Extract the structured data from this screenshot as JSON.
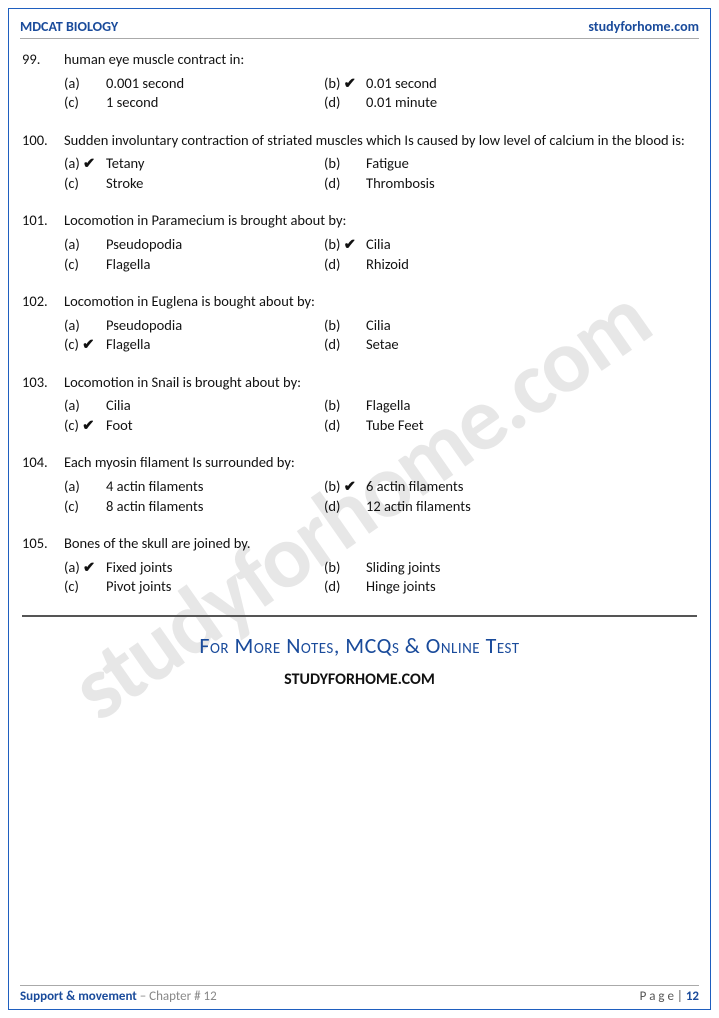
{
  "header": {
    "left": "MDCAT BIOLOGY",
    "right": "studyforhome.com"
  },
  "watermark": "studyforhome.com",
  "questions": [
    {
      "num": "99.",
      "text": "human eye muscle contract in:",
      "opts": [
        {
          "l": "(a)",
          "t": "0.001 second",
          "c": false
        },
        {
          "l": "(b)",
          "t": "0.01 second",
          "c": true
        },
        {
          "l": "(c)",
          "t": "1 second",
          "c": false
        },
        {
          "l": "(d)",
          "t": "0.01 minute",
          "c": false
        }
      ]
    },
    {
      "num": "100.",
      "text": "Sudden involuntary contraction of striated muscles which Is caused by low level of calcium in the blood is:",
      "opts": [
        {
          "l": "(a)",
          "t": "Tetany",
          "c": true
        },
        {
          "l": "(b)",
          "t": "Fatigue",
          "c": false
        },
        {
          "l": "(c)",
          "t": "Stroke",
          "c": false
        },
        {
          "l": "(d)",
          "t": "Thrombosis",
          "c": false
        }
      ]
    },
    {
      "num": "101.",
      "text": "Locomotion in Paramecium is brought about by:",
      "opts": [
        {
          "l": "(a)",
          "t": "Pseudopodia",
          "c": false
        },
        {
          "l": "(b)",
          "t": "Cilia",
          "c": true
        },
        {
          "l": "(c)",
          "t": "Flagella",
          "c": false
        },
        {
          "l": "(d)",
          "t": "Rhizoid",
          "c": false
        }
      ]
    },
    {
      "num": "102.",
      "text": "Locomotion in Euglena is bought about by:",
      "opts": [
        {
          "l": "(a)",
          "t": "Pseudopodia",
          "c": false
        },
        {
          "l": "(b)",
          "t": "Cilia",
          "c": false
        },
        {
          "l": "(c)",
          "t": "Flagella",
          "c": true
        },
        {
          "l": "(d)",
          "t": "Setae",
          "c": false
        }
      ]
    },
    {
      "num": "103.",
      "text": "Locomotion in Snail is brought about by:",
      "opts": [
        {
          "l": "(a)",
          "t": "Cilia",
          "c": false
        },
        {
          "l": "(b)",
          "t": "Flagella",
          "c": false
        },
        {
          "l": "(c)",
          "t": "Foot",
          "c": true
        },
        {
          "l": "(d)",
          "t": "Tube Feet",
          "c": false
        }
      ]
    },
    {
      "num": "104.",
      "text": "Each myosin filament Is surrounded by:",
      "opts": [
        {
          "l": "(a)",
          "t": "4 actin filaments",
          "c": false
        },
        {
          "l": "(b)",
          "t": "6 actin filaments",
          "c": true
        },
        {
          "l": "(c)",
          "t": "8 actin filaments",
          "c": false
        },
        {
          "l": "(d)",
          "t": "12 actin filaments",
          "c": false
        }
      ]
    },
    {
      "num": "105.",
      "text": "Bones of the skull are joined by.",
      "opts": [
        {
          "l": "(a)",
          "t": "Fixed joints",
          "c": true
        },
        {
          "l": "(b)",
          "t": "Sliding joints",
          "c": false
        },
        {
          "l": "(c)",
          "t": "Pivot joints",
          "c": false
        },
        {
          "l": "(d)",
          "t": "Hinge joints",
          "c": false
        }
      ]
    }
  ],
  "promo": {
    "line1": "For More Notes, MCQs & Online Test",
    "line2": "STUDYFORHOME.COM"
  },
  "footer": {
    "left1": "Support & movement",
    "left2": " – Chapter # 12",
    "rightLabel": "P a g e  | ",
    "pageNum": "12"
  },
  "checkmark": "✔"
}
